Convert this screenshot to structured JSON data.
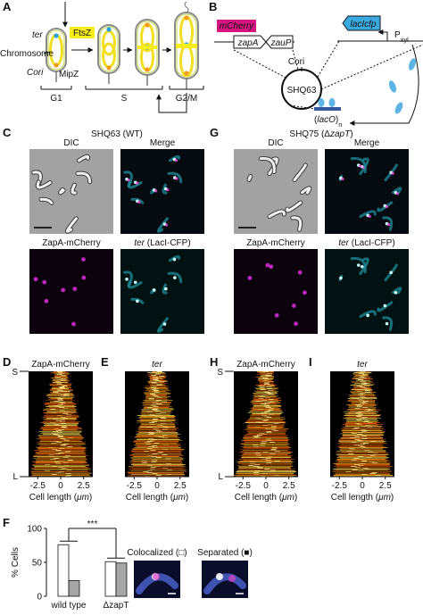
{
  "panels": {
    "A": {
      "label": "A",
      "ter": "ter",
      "ftsz": "FtsZ",
      "chromosome": "Chromosome",
      "cori": "Cori",
      "mipz": "MipZ",
      "phases": [
        "G1",
        "S",
        "G2/M"
      ]
    },
    "B": {
      "label": "B",
      "mcherry": "mCherry",
      "zapa": "zapA",
      "zaup": "zauP",
      "laci": "lacIcfp",
      "pxyl": [
        {
          "text": "P"
        },
        {
          "text": "xyl",
          "style": "sub"
        }
      ],
      "cori": "Cori",
      "plasmid": "SHQ63",
      "laco": [
        {
          "text": "("
        },
        {
          "text": "lacO",
          "style": "italic"
        },
        {
          "text": ")"
        },
        {
          "text": "n",
          "style": "sub"
        }
      ]
    },
    "C": {
      "label": "C",
      "title": [
        {
          "text": "SHQ63 (WT)"
        }
      ],
      "image_labels": [
        [
          {
            "text": "DIC"
          }
        ],
        [
          {
            "text": "Merge"
          }
        ],
        [
          {
            "text": "ZapA-mCherry"
          }
        ],
        [
          {
            "text": "ter",
            "style": "italic"
          },
          {
            "text": " (LacI-CFP)"
          }
        ]
      ]
    },
    "G": {
      "label": "G",
      "title": [
        {
          "text": "SHQ75 (Δ"
        },
        {
          "text": "zapT",
          "style": "italic"
        },
        {
          "text": ")"
        }
      ],
      "image_labels": [
        [
          {
            "text": "DIC"
          }
        ],
        [
          {
            "text": "Merge"
          }
        ],
        [
          {
            "text": "ZapA-mCherry"
          }
        ],
        [
          {
            "text": "ter",
            "style": "italic"
          },
          {
            "text": " (LacI-CFP)"
          }
        ]
      ]
    },
    "D": {
      "label": "D",
      "title": [
        {
          "text": "ZapA-mCherry"
        }
      ],
      "top": "S",
      "bottom": "L",
      "xlim": [
        -3.5,
        3.5
      ],
      "xticks": [
        -2.5,
        0,
        2.5
      ],
      "xlabel": [
        {
          "text": "Cell length ("
        },
        {
          "text": "μm",
          "style": "italic"
        },
        {
          "text": ")"
        }
      ]
    },
    "E": {
      "label": "E",
      "title": [
        {
          "text": "ter",
          "style": "italic"
        }
      ],
      "xlim": [
        -3.5,
        3.5
      ],
      "xticks": [
        -2.5,
        0,
        2.5
      ],
      "xlabel": [
        {
          "text": "Cell length ("
        },
        {
          "text": "μm",
          "style": "italic"
        },
        {
          "text": ")"
        }
      ]
    },
    "H": {
      "label": "H",
      "title": [
        {
          "text": "ZapA-mCherry"
        }
      ],
      "top": "S",
      "bottom": "L",
      "xlim": [
        -3.5,
        3.5
      ],
      "xticks": [
        -2.5,
        0,
        2.5
      ],
      "xlabel": [
        {
          "text": "Cell length ("
        },
        {
          "text": "μm",
          "style": "italic"
        },
        {
          "text": ")"
        }
      ]
    },
    "I": {
      "label": "I",
      "title": [
        {
          "text": "ter",
          "style": "italic"
        }
      ],
      "xlim": [
        -3.5,
        3.5
      ],
      "xticks": [
        -2.5,
        0,
        2.5
      ],
      "xlabel": [
        {
          "text": "Cell length ("
        },
        {
          "text": "μm",
          "style": "italic"
        },
        {
          "text": ")"
        }
      ]
    },
    "F": {
      "label": "F"
    }
  },
  "chart_data": {
    "type": "bar",
    "ylabel": "% Cells",
    "categories": [
      "wild type",
      "ΔzapT"
    ],
    "series": [
      {
        "name": "Colocalized (□)",
        "color": "#ffffff",
        "values": [
          76,
          51
        ]
      },
      {
        "name": "Separated (■)",
        "color": "#a6a6a6",
        "values": [
          23,
          49
        ]
      }
    ],
    "ylim": [
      0,
      100
    ],
    "yticks": [
      0,
      50,
      100
    ],
    "annotation": "***"
  }
}
